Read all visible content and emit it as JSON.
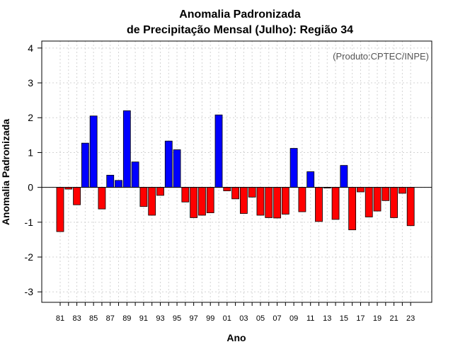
{
  "chart_data": {
    "type": "bar",
    "title": "Anomalia Padronizada",
    "subtitle": "de Precipitação Mensal (Julho): Região 34",
    "xlabel": "Ano",
    "ylabel": "Anomalia Padronizada",
    "annotation": "(Produto:CPTEC/INPE)",
    "ylim": [
      -3.3,
      4.2
    ],
    "yticks": [
      "-3",
      "-2",
      "-1",
      "0",
      "1",
      "2",
      "3",
      "4"
    ],
    "grid": true,
    "colors": {
      "positive": "#0000ff",
      "negative": "#ff0000",
      "outline": "#000000"
    },
    "categories": [
      "81",
      "82",
      "83",
      "84",
      "85",
      "86",
      "87",
      "88",
      "89",
      "90",
      "91",
      "92",
      "93",
      "94",
      "95",
      "96",
      "97",
      "98",
      "99",
      "00",
      "01",
      "02",
      "03",
      "04",
      "05",
      "06",
      "07",
      "08",
      "09",
      "10",
      "11",
      "12",
      "13",
      "14",
      "15",
      "16",
      "17",
      "18",
      "19",
      "20",
      "21",
      "22",
      "23"
    ],
    "xtick_labels": [
      "81",
      "83",
      "85",
      "87",
      "89",
      "91",
      "93",
      "95",
      "97",
      "99",
      "01",
      "03",
      "05",
      "07",
      "09",
      "11",
      "13",
      "15",
      "17",
      "19",
      "21",
      "23"
    ],
    "values": [
      -1.27,
      -0.05,
      -0.5,
      1.27,
      2.05,
      -0.62,
      0.35,
      0.2,
      2.2,
      0.73,
      -0.55,
      -0.8,
      -0.23,
      1.33,
      1.08,
      -0.42,
      -0.87,
      -0.8,
      -0.73,
      2.08,
      -0.1,
      -0.33,
      -0.75,
      -0.28,
      -0.8,
      -0.87,
      -0.88,
      -0.77,
      1.12,
      -0.7,
      0.45,
      -0.98,
      -0.02,
      -0.92,
      0.63,
      -1.22,
      -0.13,
      -0.85,
      -0.68,
      -0.38,
      -0.87,
      -0.17,
      -1.1
    ]
  }
}
